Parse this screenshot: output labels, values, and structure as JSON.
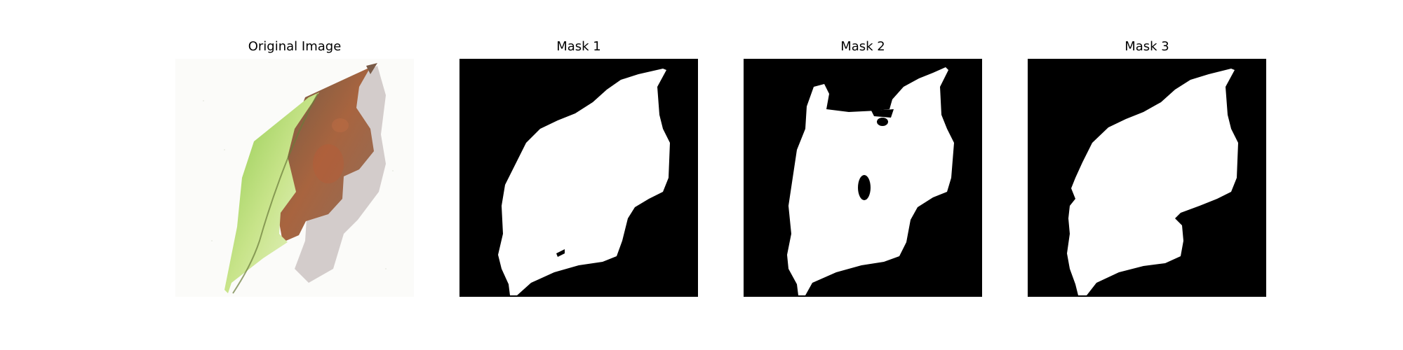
{
  "panels": [
    {
      "title": "Original Image",
      "content": "leaf-photo"
    },
    {
      "title": "Mask 1",
      "content": "binary-mask"
    },
    {
      "title": "Mask 2",
      "content": "binary-mask"
    },
    {
      "title": "Mask 3",
      "content": "binary-mask"
    }
  ],
  "colors": {
    "mask_background": "#000000",
    "mask_foreground": "#ffffff",
    "leaf_green": "#a9d66b",
    "leaf_light": "#e9f3c9",
    "leaf_brown": "#8a5a43",
    "leaf_rust": "#b0603c",
    "shadow": "#9c8a88"
  }
}
